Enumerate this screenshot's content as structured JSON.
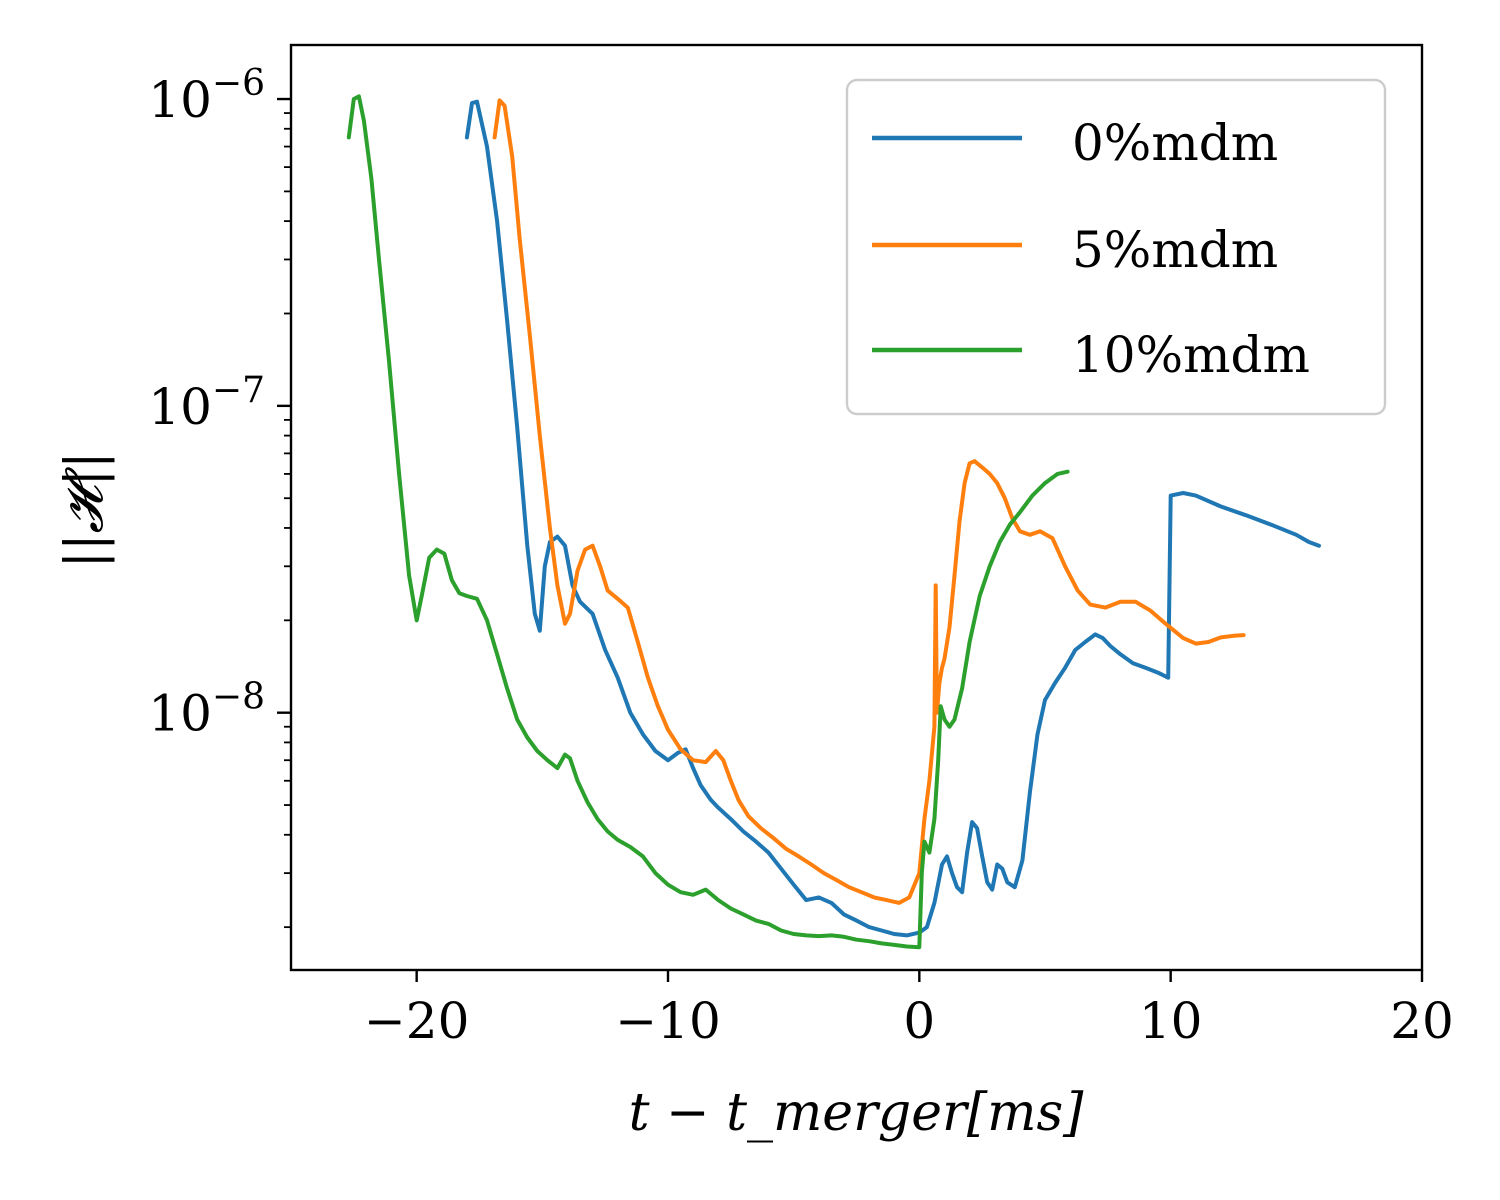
{
  "chart_data": {
    "type": "line",
    "title": "",
    "xlabel": "t − t_merger[ms]",
    "ylabel": "||𝓗||",
    "xscale": "linear",
    "yscale": "log",
    "xlim": [
      -25,
      20
    ],
    "ylim": [
      1.45e-09,
      1.5e-06
    ],
    "x_ticks": [
      -20,
      -10,
      0,
      10,
      20
    ],
    "x_tick_labels": [
      "−20",
      "−10",
      "0",
      "10",
      "20"
    ],
    "y_ticks": [
      {
        "value": 1e-06,
        "base": "10",
        "exp": "−6"
      },
      {
        "value": 1e-07,
        "base": "10",
        "exp": "−7"
      },
      {
        "value": 1e-08,
        "base": "10",
        "exp": "−8"
      }
    ],
    "grid": false,
    "legend_position": "top-right",
    "series": [
      {
        "name": "0%mdm",
        "color": "#1f77b4",
        "x": [
          -18.0,
          -17.8,
          -17.6,
          -17.2,
          -16.8,
          -16.4,
          -16.0,
          -15.6,
          -15.3,
          -15.1,
          -14.9,
          -14.7,
          -14.4,
          -14.1,
          -13.8,
          -13.5,
          -13.0,
          -12.5,
          -12.0,
          -11.5,
          -11.0,
          -10.5,
          -10.0,
          -9.6,
          -9.3,
          -9.0,
          -8.7,
          -8.3,
          -8.0,
          -7.5,
          -7.0,
          -6.5,
          -6.0,
          -5.5,
          -5.0,
          -4.5,
          -4.0,
          -3.5,
          -3.0,
          -2.5,
          -2.0,
          -1.5,
          -1.0,
          -0.5,
          0.0,
          0.3,
          0.6,
          0.9,
          1.1,
          1.3,
          1.5,
          1.7,
          1.9,
          2.1,
          2.3,
          2.5,
          2.7,
          2.9,
          3.1,
          3.3,
          3.5,
          3.8,
          4.1,
          4.4,
          4.7,
          5.0,
          5.4,
          5.8,
          6.2,
          6.6,
          7.0,
          7.3,
          7.6,
          8.0,
          8.5,
          9.0,
          9.5,
          9.9,
          10.0,
          10.5,
          11.0,
          12.0,
          13.0,
          14.0,
          15.0,
          15.5,
          15.9
        ],
        "y": [
          7.5e-07,
          9.7e-07,
          9.8e-07,
          7e-07,
          4e-07,
          1.9e-07,
          8.5e-08,
          3.5e-08,
          2.1e-08,
          1.85e-08,
          3e-08,
          3.6e-08,
          3.75e-08,
          3.5e-08,
          2.6e-08,
          2.3e-08,
          2.1e-08,
          1.6e-08,
          1.3e-08,
          1e-08,
          8.5e-09,
          7.5e-09,
          7e-09,
          7.4e-09,
          7.6e-09,
          6.6e-09,
          5.8e-09,
          5.2e-09,
          4.9e-09,
          4.5e-09,
          4.1e-09,
          3.8e-09,
          3.5e-09,
          3.1e-09,
          2.75e-09,
          2.45e-09,
          2.5e-09,
          2.4e-09,
          2.2e-09,
          2.1e-09,
          2e-09,
          1.95e-09,
          1.9e-09,
          1.88e-09,
          1.92e-09,
          2e-09,
          2.4e-09,
          3.2e-09,
          3.4e-09,
          3e-09,
          2.7e-09,
          2.6e-09,
          3.5e-09,
          4.4e-09,
          4.2e-09,
          3.4e-09,
          2.8e-09,
          2.65e-09,
          3.2e-09,
          3.1e-09,
          2.8e-09,
          2.7e-09,
          3.3e-09,
          5.5e-09,
          8.5e-09,
          1.1e-08,
          1.25e-08,
          1.4e-08,
          1.6e-08,
          1.7e-08,
          1.8e-08,
          1.75e-08,
          1.65e-08,
          1.55e-08,
          1.45e-08,
          1.4e-08,
          1.35e-08,
          1.3e-08,
          5.1e-08,
          5.2e-08,
          5.1e-08,
          4.7e-08,
          4.4e-08,
          4.1e-08,
          3.8e-08,
          3.6e-08,
          3.5e-08
        ]
      },
      {
        "name": "5%mdm",
        "color": "#ff7f0e",
        "x": [
          -16.9,
          -16.7,
          -16.5,
          -16.2,
          -15.9,
          -15.5,
          -15.1,
          -14.7,
          -14.4,
          -14.1,
          -13.9,
          -13.6,
          -13.3,
          -13.0,
          -12.7,
          -12.4,
          -12.0,
          -11.6,
          -11.2,
          -10.8,
          -10.4,
          -10.0,
          -9.5,
          -9.0,
          -8.5,
          -8.1,
          -7.8,
          -7.5,
          -7.2,
          -6.8,
          -6.3,
          -5.8,
          -5.3,
          -4.8,
          -4.3,
          -3.8,
          -3.3,
          -2.8,
          -2.3,
          -1.8,
          -1.3,
          -0.8,
          -0.4,
          0.0,
          0.2,
          0.4,
          0.6,
          0.65,
          0.7,
          0.8,
          0.9,
          1.0,
          1.2,
          1.4,
          1.6,
          1.8,
          2.0,
          2.2,
          2.5,
          2.8,
          3.1,
          3.4,
          3.7,
          4.0,
          4.4,
          4.8,
          5.3,
          5.8,
          6.3,
          6.8,
          7.4,
          8.0,
          8.6,
          9.2,
          9.8,
          10.5,
          11.0,
          11.5,
          12.0,
          12.5,
          12.9
        ],
        "y": [
          7.5e-07,
          9.9e-07,
          9.5e-07,
          6.5e-07,
          3.5e-07,
          1.7e-07,
          8e-08,
          4e-08,
          2.6e-08,
          1.95e-08,
          2.1e-08,
          2.9e-08,
          3.4e-08,
          3.5e-08,
          3e-08,
          2.5e-08,
          2.35e-08,
          2.2e-08,
          1.7e-08,
          1.3e-08,
          1.05e-08,
          8.8e-09,
          7.6e-09,
          7e-09,
          6.9e-09,
          7.5e-09,
          7e-09,
          6e-09,
          5.2e-09,
          4.6e-09,
          4.2e-09,
          3.9e-09,
          3.6e-09,
          3.4e-09,
          3.2e-09,
          3e-09,
          2.85e-09,
          2.7e-09,
          2.6e-09,
          2.5e-09,
          2.45e-09,
          2.4e-09,
          2.5e-09,
          3e-09,
          4.5e-09,
          6e-09,
          9e-09,
          2.6e-08,
          1e-08,
          1.25e-08,
          1.4e-08,
          1.5e-08,
          1.9e-08,
          2.8e-08,
          4.2e-08,
          5.6e-08,
          6.5e-08,
          6.6e-08,
          6.3e-08,
          6e-08,
          5.6e-08,
          5e-08,
          4.3e-08,
          3.9e-08,
          3.8e-08,
          3.9e-08,
          3.7e-08,
          3e-08,
          2.5e-08,
          2.25e-08,
          2.2e-08,
          2.3e-08,
          2.3e-08,
          2.15e-08,
          1.95e-08,
          1.75e-08,
          1.68e-08,
          1.7e-08,
          1.76e-08,
          1.78e-08,
          1.79e-08
        ]
      },
      {
        "name": "10%mdm",
        "color": "#2ca02c",
        "x": [
          -22.7,
          -22.5,
          -22.3,
          -22.1,
          -21.8,
          -21.5,
          -21.1,
          -20.7,
          -20.3,
          -20.0,
          -19.8,
          -19.5,
          -19.2,
          -18.9,
          -18.6,
          -18.3,
          -18.0,
          -17.6,
          -17.2,
          -16.8,
          -16.4,
          -16.0,
          -15.6,
          -15.2,
          -14.8,
          -14.4,
          -14.1,
          -13.9,
          -13.6,
          -13.2,
          -12.8,
          -12.4,
          -12.0,
          -11.5,
          -11.0,
          -10.5,
          -10.0,
          -9.5,
          -9.0,
          -8.5,
          -8.0,
          -7.5,
          -7.0,
          -6.5,
          -6.0,
          -5.5,
          -5.0,
          -4.5,
          -4.0,
          -3.5,
          -3.0,
          -2.5,
          -2.0,
          -1.5,
          -1.0,
          -0.5,
          0.0,
          0.1,
          0.2,
          0.4,
          0.6,
          0.75,
          0.85,
          1.0,
          1.2,
          1.4,
          1.7,
          2.0,
          2.4,
          2.8,
          3.2,
          3.6,
          4.0,
          4.5,
          5.0,
          5.5,
          5.9
        ],
        "y": [
          7.5e-07,
          1e-06,
          1.02e-06,
          8.5e-07,
          5.5e-07,
          3e-07,
          1.4e-07,
          6e-08,
          2.8e-08,
          2e-08,
          2.4e-08,
          3.2e-08,
          3.4e-08,
          3.3e-08,
          2.7e-08,
          2.45e-08,
          2.4e-08,
          2.35e-08,
          2e-08,
          1.55e-08,
          1.2e-08,
          9.5e-09,
          8.3e-09,
          7.5e-09,
          7e-09,
          6.6e-09,
          7.3e-09,
          7.1e-09,
          6e-09,
          5.1e-09,
          4.5e-09,
          4.1e-09,
          3.85e-09,
          3.65e-09,
          3.4e-09,
          3e-09,
          2.75e-09,
          2.6e-09,
          2.55e-09,
          2.65e-09,
          2.45e-09,
          2.3e-09,
          2.2e-09,
          2.1e-09,
          2.05e-09,
          1.95e-09,
          1.9e-09,
          1.88e-09,
          1.87e-09,
          1.88e-09,
          1.86e-09,
          1.82e-09,
          1.8e-09,
          1.77e-09,
          1.75e-09,
          1.73e-09,
          1.72e-09,
          3e-09,
          3.8e-09,
          3.5e-09,
          4.5e-09,
          7e-09,
          1.05e-08,
          9.5e-09,
          9e-09,
          9.5e-09,
          1.2e-08,
          1.7e-08,
          2.4e-08,
          3e-08,
          3.6e-08,
          4.1e-08,
          4.5e-08,
          5.1e-08,
          5.6e-08,
          6e-08,
          6.1e-08
        ]
      }
    ]
  }
}
